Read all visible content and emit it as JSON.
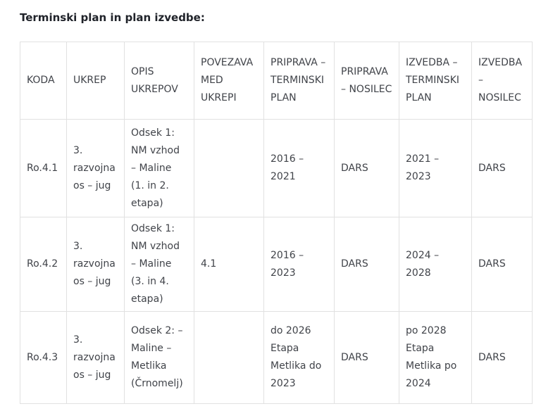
{
  "title": "Terminski plan in plan izvedbe:",
  "colors": {
    "background": "#ffffff",
    "title_text": "#20232a",
    "cell_text": "#404349",
    "table_border": "#e1e1e1"
  },
  "table": {
    "headers": [
      "KODA",
      "UKREP",
      "OPIS UKREPOV",
      "POVEZAVA MED UKREPI",
      "PRIPRAVA – TERMINSKI PLAN",
      "PRIPRAVA – NOSILEC",
      "IZVEDBA – TERMINSKI PLAN",
      "IZVEDBA – NOSILEC"
    ],
    "rows": [
      {
        "cells": [
          "Ro.4.1",
          "3. razvojna os – jug",
          "Odsek 1: NM vzhod – Maline (1. in 2. etapa)",
          "",
          "2016 – 2021",
          "DARS",
          "2021 – 2023",
          "DARS"
        ]
      },
      {
        "cells": [
          "Ro.4.2",
          "3. razvojna os – jug",
          "Odsek 1: NM vzhod – Maline (3. in 4. etapa)",
          "4.1",
          "2016 – 2023",
          "DARS",
          "2024 – 2028",
          "DARS"
        ]
      },
      {
        "cells": [
          "Ro.4.3",
          "3. razvojna os – jug",
          "Odsek 2: – Maline – Metlika (Črnomelj)",
          "",
          "do 2026 Etapa Metlika do 2023",
          "DARS",
          "po 2028 Etapa Metlika po 2024",
          "DARS"
        ]
      }
    ]
  }
}
